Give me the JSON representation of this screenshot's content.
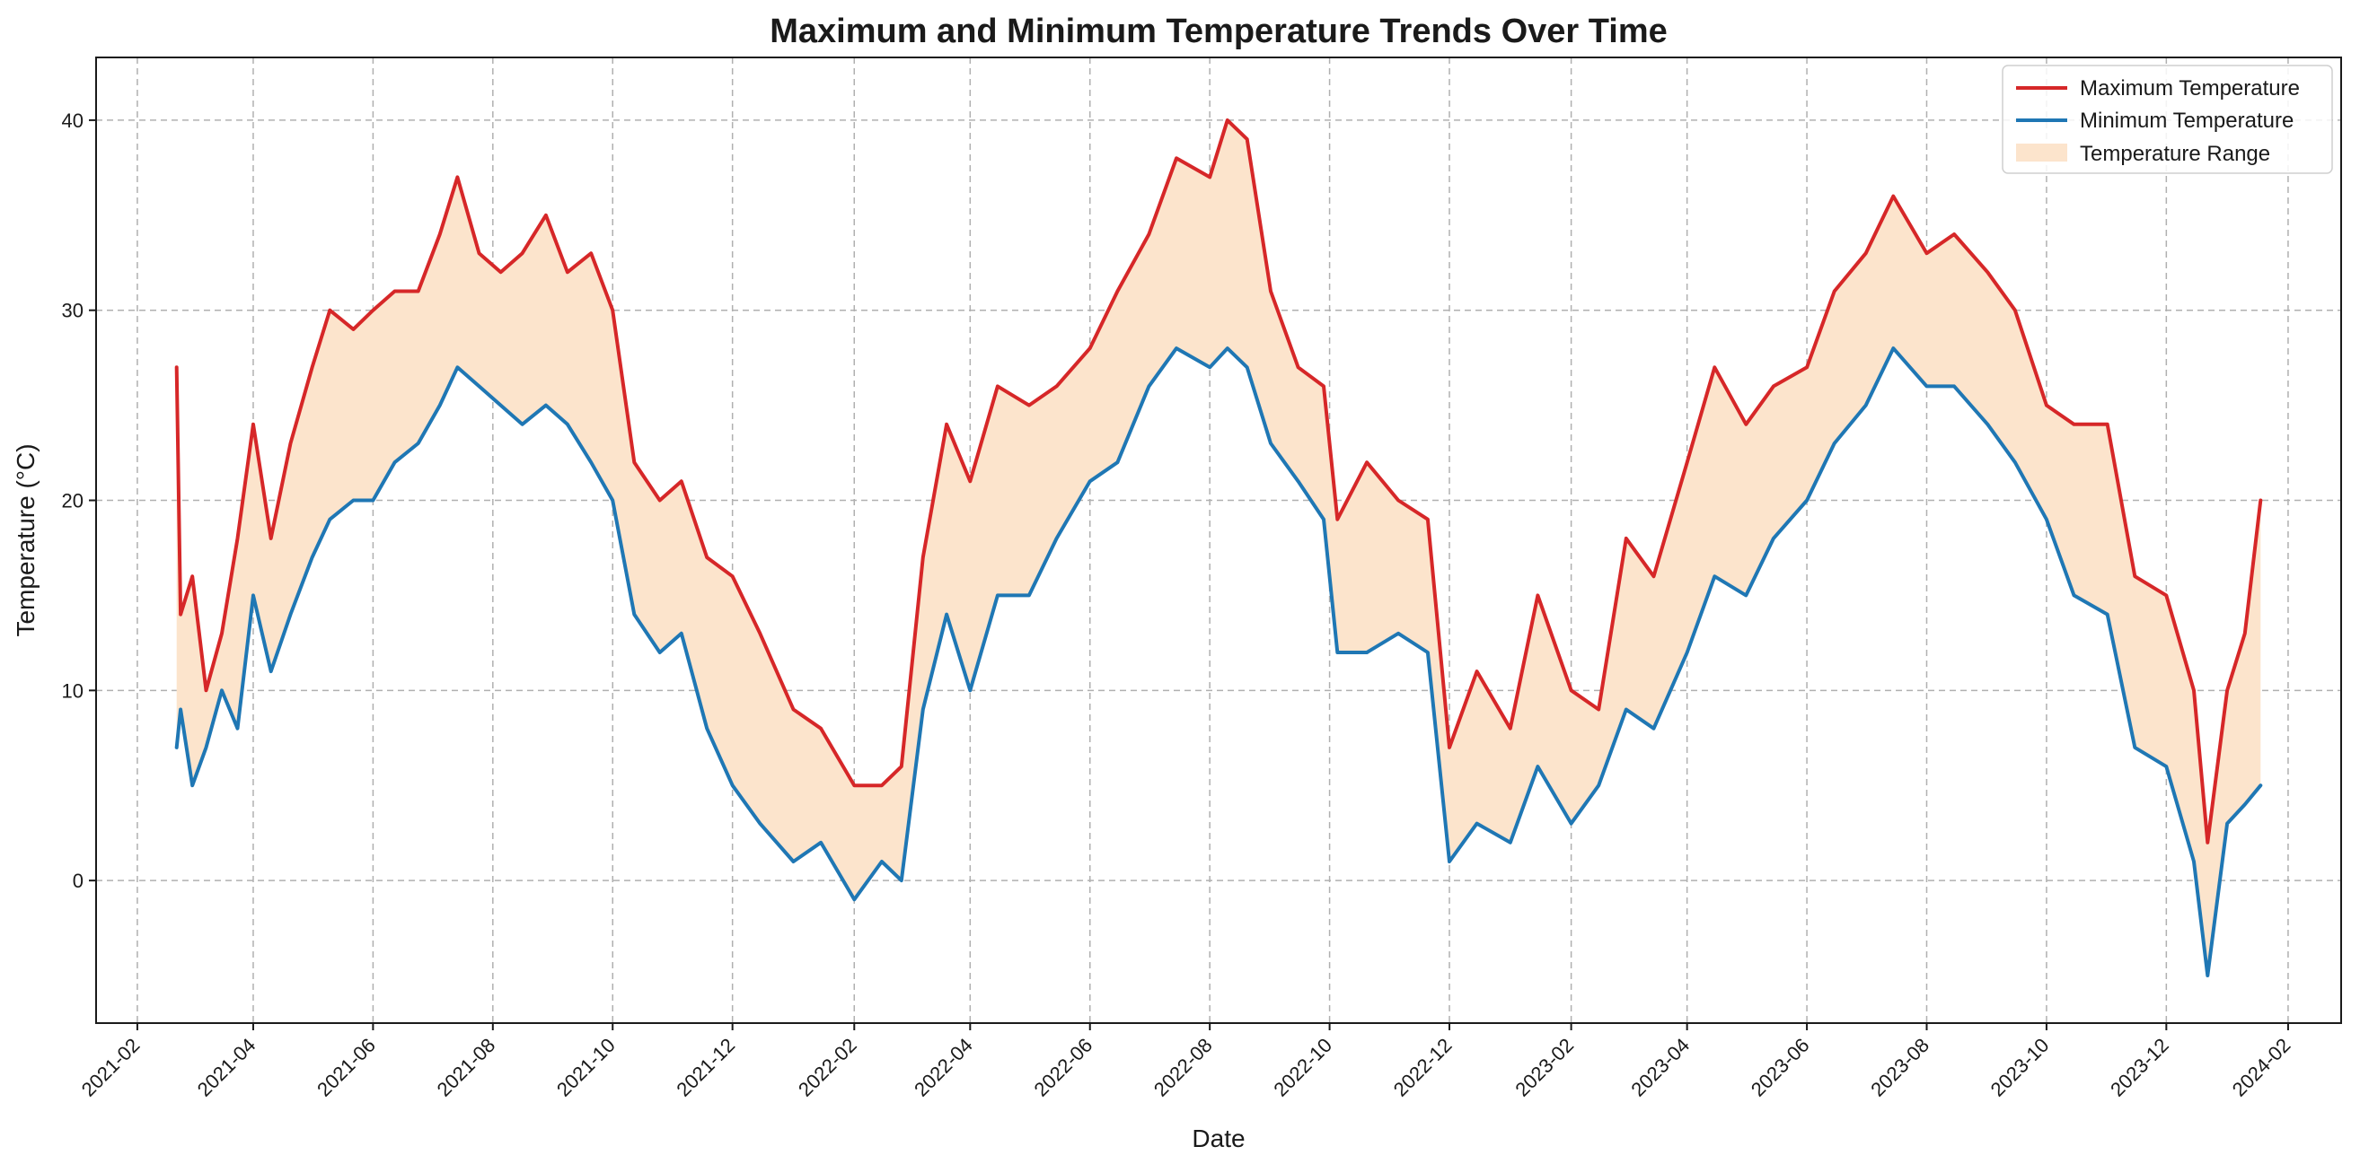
{
  "colors": {
    "max_line": "#d62728",
    "min_line": "#1f77b4",
    "range_fill": "#fce4cc"
  },
  "chart_data": {
    "type": "line",
    "title": "Maximum and Minimum Temperature Trends Over Time",
    "xlabel": "Date",
    "ylabel": "Temperature (°C)",
    "x_axis": "date",
    "xlim": [
      "2021-01-11",
      "2024-02-28"
    ],
    "ylim": [
      -7.5,
      43.3
    ],
    "y_ticks": [
      0,
      10,
      20,
      30,
      40
    ],
    "x_ticks": [
      "2021-02",
      "2021-04",
      "2021-06",
      "2021-08",
      "2021-10",
      "2021-12",
      "2022-02",
      "2022-04",
      "2022-06",
      "2022-08",
      "2022-10",
      "2022-12",
      "2023-02",
      "2023-04",
      "2023-06",
      "2023-08",
      "2023-10",
      "2023-12",
      "2024-02"
    ],
    "grid": true,
    "legend_position": "top-right",
    "legend": [
      "Maximum Temperature",
      "Minimum Temperature",
      "Temperature Range"
    ],
    "series": [
      {
        "name": "Maximum Temperature",
        "color": "#d62728",
        "points": [
          [
            "2021-02-21",
            27
          ],
          [
            "2021-02-23",
            14
          ],
          [
            "2021-03-01",
            16
          ],
          [
            "2021-03-08",
            10
          ],
          [
            "2021-03-16",
            13
          ],
          [
            "2021-03-24",
            18
          ],
          [
            "2021-04-01",
            24
          ],
          [
            "2021-04-10",
            18
          ],
          [
            "2021-04-20",
            23
          ],
          [
            "2021-05-01",
            27
          ],
          [
            "2021-05-10",
            30
          ],
          [
            "2021-05-22",
            29
          ],
          [
            "2021-06-01",
            30
          ],
          [
            "2021-06-12",
            31
          ],
          [
            "2021-06-24",
            31
          ],
          [
            "2021-07-05",
            34
          ],
          [
            "2021-07-14",
            37
          ],
          [
            "2021-07-25",
            33
          ],
          [
            "2021-08-05",
            32
          ],
          [
            "2021-08-16",
            33
          ],
          [
            "2021-08-28",
            35
          ],
          [
            "2021-09-08",
            32
          ],
          [
            "2021-09-20",
            33
          ],
          [
            "2021-10-01",
            30
          ],
          [
            "2021-10-12",
            22
          ],
          [
            "2021-10-25",
            20
          ],
          [
            "2021-11-05",
            21
          ],
          [
            "2021-11-18",
            17
          ],
          [
            "2021-12-01",
            16
          ],
          [
            "2021-12-15",
            13
          ],
          [
            "2022-01-01",
            9
          ],
          [
            "2022-01-15",
            8
          ],
          [
            "2022-02-01",
            5
          ],
          [
            "2022-02-15",
            5
          ],
          [
            "2022-02-25",
            6
          ],
          [
            "2022-03-08",
            17
          ],
          [
            "2022-03-20",
            24
          ],
          [
            "2022-04-01",
            21
          ],
          [
            "2022-04-15",
            26
          ],
          [
            "2022-05-01",
            25
          ],
          [
            "2022-05-15",
            26
          ],
          [
            "2022-06-01",
            28
          ],
          [
            "2022-06-15",
            31
          ],
          [
            "2022-07-01",
            34
          ],
          [
            "2022-07-15",
            38
          ],
          [
            "2022-08-01",
            37
          ],
          [
            "2022-08-10",
            40
          ],
          [
            "2022-08-20",
            39
          ],
          [
            "2022-09-01",
            31
          ],
          [
            "2022-09-15",
            27
          ],
          [
            "2022-09-28",
            26
          ],
          [
            "2022-10-05",
            19
          ],
          [
            "2022-10-20",
            22
          ],
          [
            "2022-11-05",
            20
          ],
          [
            "2022-11-20",
            19
          ],
          [
            "2022-12-01",
            7
          ],
          [
            "2022-12-15",
            11
          ],
          [
            "2023-01-01",
            8
          ],
          [
            "2023-01-15",
            15
          ],
          [
            "2023-02-01",
            10
          ],
          [
            "2023-02-15",
            9
          ],
          [
            "2023-03-01",
            18
          ],
          [
            "2023-03-15",
            16
          ],
          [
            "2023-04-01",
            22
          ],
          [
            "2023-04-15",
            27
          ],
          [
            "2023-05-01",
            24
          ],
          [
            "2023-05-15",
            26
          ],
          [
            "2023-06-01",
            27
          ],
          [
            "2023-06-15",
            31
          ],
          [
            "2023-07-01",
            33
          ],
          [
            "2023-07-15",
            36
          ],
          [
            "2023-08-01",
            33
          ],
          [
            "2023-08-15",
            34
          ],
          [
            "2023-09-01",
            32
          ],
          [
            "2023-09-15",
            30
          ],
          [
            "2023-10-01",
            25
          ],
          [
            "2023-10-15",
            24
          ],
          [
            "2023-11-01",
            24
          ],
          [
            "2023-11-15",
            16
          ],
          [
            "2023-12-01",
            15
          ],
          [
            "2023-12-15",
            10
          ],
          [
            "2023-12-22",
            2
          ],
          [
            "2024-01-01",
            10
          ],
          [
            "2024-01-10",
            13
          ],
          [
            "2024-01-18",
            20
          ]
        ]
      },
      {
        "name": "Minimum Temperature",
        "color": "#1f77b4",
        "points": [
          [
            "2021-02-21",
            7
          ],
          [
            "2021-02-23",
            9
          ],
          [
            "2021-03-01",
            5
          ],
          [
            "2021-03-08",
            7
          ],
          [
            "2021-03-16",
            10
          ],
          [
            "2021-03-24",
            8
          ],
          [
            "2021-04-01",
            15
          ],
          [
            "2021-04-10",
            11
          ],
          [
            "2021-04-20",
            14
          ],
          [
            "2021-05-01",
            17
          ],
          [
            "2021-05-10",
            19
          ],
          [
            "2021-05-22",
            20
          ],
          [
            "2021-06-01",
            20
          ],
          [
            "2021-06-12",
            22
          ],
          [
            "2021-06-24",
            23
          ],
          [
            "2021-07-05",
            25
          ],
          [
            "2021-07-14",
            27
          ],
          [
            "2021-07-25",
            26
          ],
          [
            "2021-08-05",
            25
          ],
          [
            "2021-08-16",
            24
          ],
          [
            "2021-08-28",
            25
          ],
          [
            "2021-09-08",
            24
          ],
          [
            "2021-09-20",
            22
          ],
          [
            "2021-10-01",
            20
          ],
          [
            "2021-10-12",
            14
          ],
          [
            "2021-10-25",
            12
          ],
          [
            "2021-11-05",
            13
          ],
          [
            "2021-11-18",
            8
          ],
          [
            "2021-12-01",
            5
          ],
          [
            "2021-12-15",
            3
          ],
          [
            "2022-01-01",
            1
          ],
          [
            "2022-01-15",
            2
          ],
          [
            "2022-02-01",
            -1
          ],
          [
            "2022-02-15",
            1
          ],
          [
            "2022-02-25",
            0
          ],
          [
            "2022-03-08",
            9
          ],
          [
            "2022-03-20",
            14
          ],
          [
            "2022-04-01",
            10
          ],
          [
            "2022-04-15",
            15
          ],
          [
            "2022-05-01",
            15
          ],
          [
            "2022-05-15",
            18
          ],
          [
            "2022-06-01",
            21
          ],
          [
            "2022-06-15",
            22
          ],
          [
            "2022-07-01",
            26
          ],
          [
            "2022-07-15",
            28
          ],
          [
            "2022-08-01",
            27
          ],
          [
            "2022-08-10",
            28
          ],
          [
            "2022-08-20",
            27
          ],
          [
            "2022-09-01",
            23
          ],
          [
            "2022-09-15",
            21
          ],
          [
            "2022-09-28",
            19
          ],
          [
            "2022-10-05",
            12
          ],
          [
            "2022-10-20",
            12
          ],
          [
            "2022-11-05",
            13
          ],
          [
            "2022-11-20",
            12
          ],
          [
            "2022-12-01",
            1
          ],
          [
            "2022-12-15",
            3
          ],
          [
            "2023-01-01",
            2
          ],
          [
            "2023-01-15",
            6
          ],
          [
            "2023-02-01",
            3
          ],
          [
            "2023-02-15",
            5
          ],
          [
            "2023-03-01",
            9
          ],
          [
            "2023-03-15",
            8
          ],
          [
            "2023-04-01",
            12
          ],
          [
            "2023-04-15",
            16
          ],
          [
            "2023-05-01",
            15
          ],
          [
            "2023-05-15",
            18
          ],
          [
            "2023-06-01",
            20
          ],
          [
            "2023-06-15",
            23
          ],
          [
            "2023-07-01",
            25
          ],
          [
            "2023-07-15",
            28
          ],
          [
            "2023-08-01",
            26
          ],
          [
            "2023-08-15",
            26
          ],
          [
            "2023-09-01",
            24
          ],
          [
            "2023-09-15",
            22
          ],
          [
            "2023-10-01",
            19
          ],
          [
            "2023-10-15",
            15
          ],
          [
            "2023-11-01",
            14
          ],
          [
            "2023-11-15",
            7
          ],
          [
            "2023-12-01",
            6
          ],
          [
            "2023-12-15",
            1
          ],
          [
            "2023-12-22",
            -5
          ],
          [
            "2024-01-01",
            3
          ],
          [
            "2024-01-10",
            4
          ],
          [
            "2024-01-18",
            5
          ]
        ]
      }
    ]
  }
}
